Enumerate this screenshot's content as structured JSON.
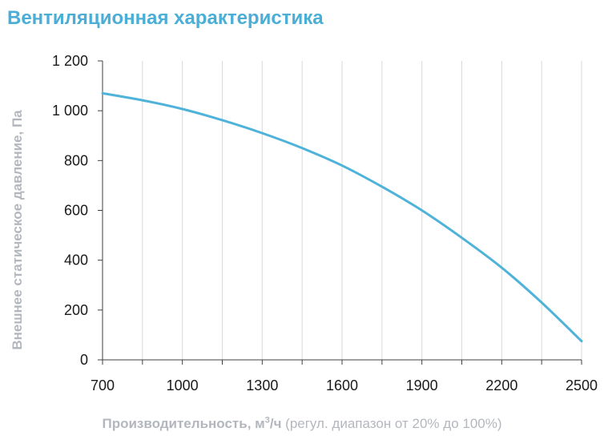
{
  "chart_data": {
    "type": "line",
    "title": "Вентиляционная характеристика",
    "ylabel": "Внешнее статическое давление, Па",
    "xlabel": {
      "main": "Производительность",
      "unit_prefix": ", м",
      "unit_sup": "3",
      "unit_suffix": "/ч",
      "note": " (регул. диапазон от 20% до 100%)"
    },
    "xlim": [
      700,
      2500
    ],
    "ylim": [
      0,
      1200
    ],
    "x_ticks": [
      700,
      1000,
      1300,
      1600,
      1900,
      2200,
      2500
    ],
    "x_tick_labels": [
      "700",
      "1000",
      "1300",
      "1600",
      "1900",
      "2200",
      "2500"
    ],
    "x_minor_ticks": [
      850,
      1150,
      1450,
      1750,
      2050,
      2350
    ],
    "y_ticks": [
      0,
      200,
      400,
      600,
      800,
      1000,
      1200
    ],
    "y_tick_labels": [
      "0",
      "200",
      "400",
      "600",
      "800",
      "1 000",
      "1 200"
    ],
    "grid": {
      "vertical": true,
      "horizontal": false
    },
    "colors": {
      "line": "#4fb3d9",
      "title": "#4aaed6",
      "grid": "#d9d9d9",
      "axis": "#404040",
      "label": "#b3b7bd"
    },
    "series": [
      {
        "x": [
          700,
          850,
          1000,
          1150,
          1300,
          1450,
          1600,
          1750,
          1900,
          2050,
          2200,
          2350,
          2500
        ],
        "y": [
          1070,
          1042,
          1007,
          962,
          910,
          850,
          780,
          695,
          600,
          490,
          370,
          230,
          75
        ]
      }
    ]
  }
}
